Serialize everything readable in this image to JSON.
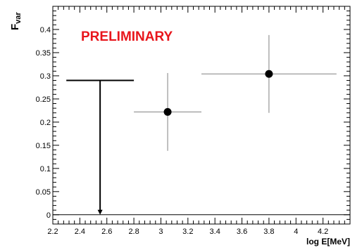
{
  "chart_data": {
    "type": "scatter",
    "title": "",
    "xlabel": "log E[MeV]",
    "ylabel": {
      "main": "F",
      "sub": "var"
    },
    "annotation": {
      "text": "PRELIMINARY",
      "color": "#e8161c"
    },
    "xlim": [
      2.2,
      4.4
    ],
    "ylim": [
      -0.02,
      0.45
    ],
    "xticks": [
      2.2,
      2.4,
      2.6,
      2.8,
      3.0,
      3.2,
      3.4,
      3.6,
      3.8,
      4.0,
      4.2
    ],
    "xtick_labels": [
      "2.2",
      "2.4",
      "2.6",
      "2.8",
      "3",
      "3.2",
      "3.4",
      "3.6",
      "3.8",
      "4",
      "4.2"
    ],
    "yticks": [
      0,
      0.05,
      0.1,
      0.15,
      0.2,
      0.25,
      0.3,
      0.35,
      0.4
    ],
    "ytick_labels": [
      "0",
      "0.05",
      "0.1",
      "0.15",
      "0.2",
      "0.25",
      "0.3",
      "0.35",
      "0.4"
    ],
    "grid": false,
    "reference_line_y": 0,
    "upper_limits": [
      {
        "x": 2.55,
        "xlow": 2.3,
        "xhigh": 2.8,
        "y": 0.29,
        "arrow_to": 0
      }
    ],
    "points": [
      {
        "x": 3.05,
        "xlow": 2.8,
        "xhigh": 3.3,
        "y": 0.222,
        "ylow": 0.138,
        "yhigh": 0.306
      },
      {
        "x": 3.8,
        "xlow": 3.3,
        "xhigh": 4.3,
        "y": 0.304,
        "ylow": 0.22,
        "yhigh": 0.388
      }
    ],
    "colors": {
      "data": "#000000",
      "errorbar": "#808080",
      "axis": "#000000"
    }
  }
}
